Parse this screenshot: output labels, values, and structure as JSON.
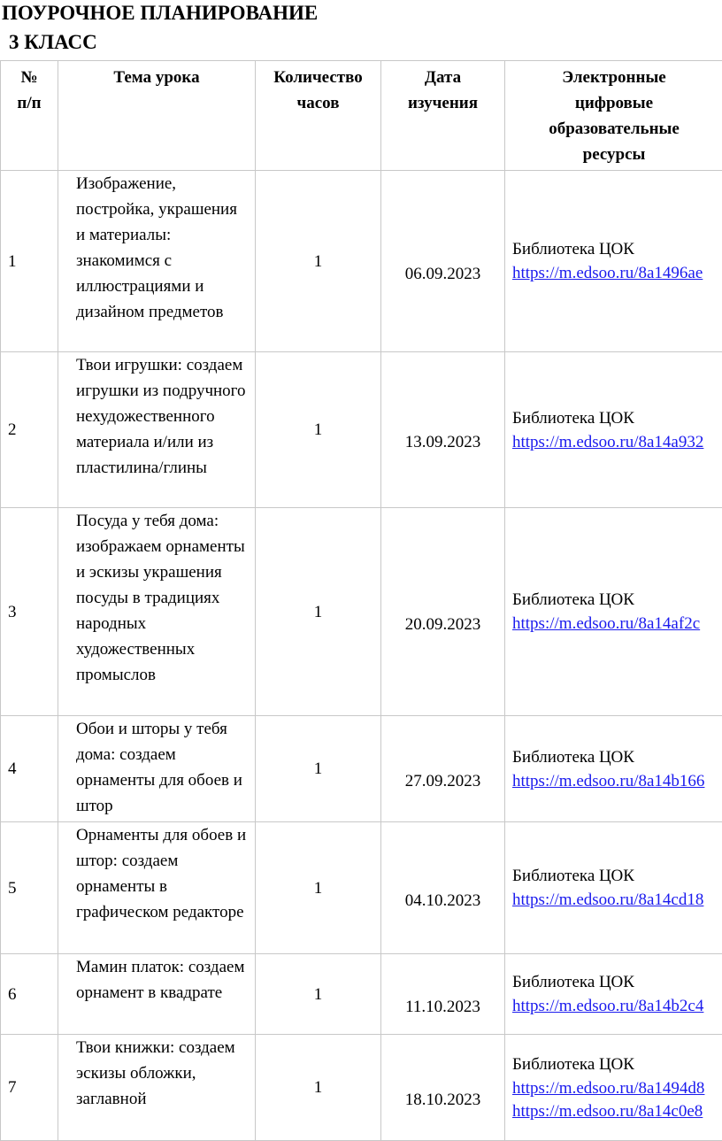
{
  "title": "ПОУРОЧНОЕ ПЛАНИРОВАНИЕ",
  "subtitle": "3 КЛАСС",
  "headers": [
    "№ п/п",
    "Тема урока",
    "Количество часов",
    "Дата изучения",
    "Электронные цифровые образовательные ресурсы"
  ],
  "link_color": "#1a1aee",
  "rows": [
    {
      "num": "1",
      "topic": "Изображение, постройка, украшения и материалы: знакомимся с иллюстрациями и дизайном предметов",
      "hours": "1",
      "date": "06.09.2023",
      "lib": "Библиотека ЦОК",
      "links": [
        "https://m.edsoo.ru/8a1496ae"
      ]
    },
    {
      "num": "2",
      "topic": "Твои игрушки: создаем игрушки из подручного нехудожественного материала и/или из пластилина/глины",
      "hours": "1",
      "date": "13.09.2023",
      "lib": "Библиотека ЦОК",
      "links": [
        "https://m.edsoo.ru/8a14a932"
      ]
    },
    {
      "num": "3",
      "topic": "Посуда у тебя дома: изображаем орнаменты и эскизы украшения посуды в традициях народных художественных промыслов",
      "hours": "1",
      "date": "20.09.2023",
      "lib": "Библиотека ЦОК",
      "links": [
        "https://m.edsoo.ru/8a14af2c"
      ]
    },
    {
      "num": "4",
      "topic": "Обои и шторы у тебя дома: создаем орнаменты для обоев и штор",
      "hours": "1",
      "date": "27.09.2023",
      "lib": "Библиотека ЦОК",
      "links": [
        "https://m.edsoo.ru/8a14b166"
      ]
    },
    {
      "num": "5",
      "topic": "Орнаменты для обоев и штор: создаем орнаменты в графическом редакторе",
      "hours": "1",
      "date": "04.10.2023",
      "lib": "Библиотека ЦОК",
      "links": [
        "https://m.edsoo.ru/8a14cd18"
      ]
    },
    {
      "num": "6",
      "topic": "Мамин платок: создаем орнамент в квадрате",
      "hours": "1",
      "date": "11.10.2023",
      "lib": "Библиотека ЦОК",
      "links": [
        "https://m.edsoo.ru/8a14b2c4"
      ]
    },
    {
      "num": "7",
      "topic": "Твои книжки: создаем эскизы обложки, заглавной",
      "hours": "1",
      "date": "18.10.2023",
      "lib": "Библиотека ЦОК",
      "links": [
        "https://m.edsoo.ru/8a1494d8",
        "https://m.edsoo.ru/8a14c0e8"
      ]
    }
  ]
}
